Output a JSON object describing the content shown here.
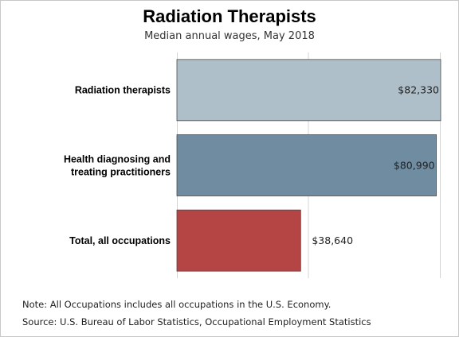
{
  "chart_data": {
    "type": "bar",
    "orientation": "horizontal",
    "title": "Radiation Therapists",
    "subtitle": "Median annual wages, May 2018",
    "categories": [
      [
        "Radiation therapists"
      ],
      [
        "Health diagnosing and",
        "treating practitioners"
      ],
      [
        "Total, all occupations"
      ]
    ],
    "values": [
      82330,
      80990,
      38640
    ],
    "value_labels": [
      "$82,330",
      "$80,990",
      "$38,640"
    ],
    "colors": [
      "#aebfca",
      "#6f8ca1",
      "#b54444"
    ],
    "xlim": [
      0,
      82330
    ],
    "grid": true,
    "legend": "none",
    "xlabel": "",
    "ylabel": ""
  },
  "notes": {
    "note": "Note: All Occupations includes all occupations in the U.S. Economy.",
    "source": "Source: U.S. Bureau of Labor Statistics, Occupational Employment Statistics"
  }
}
